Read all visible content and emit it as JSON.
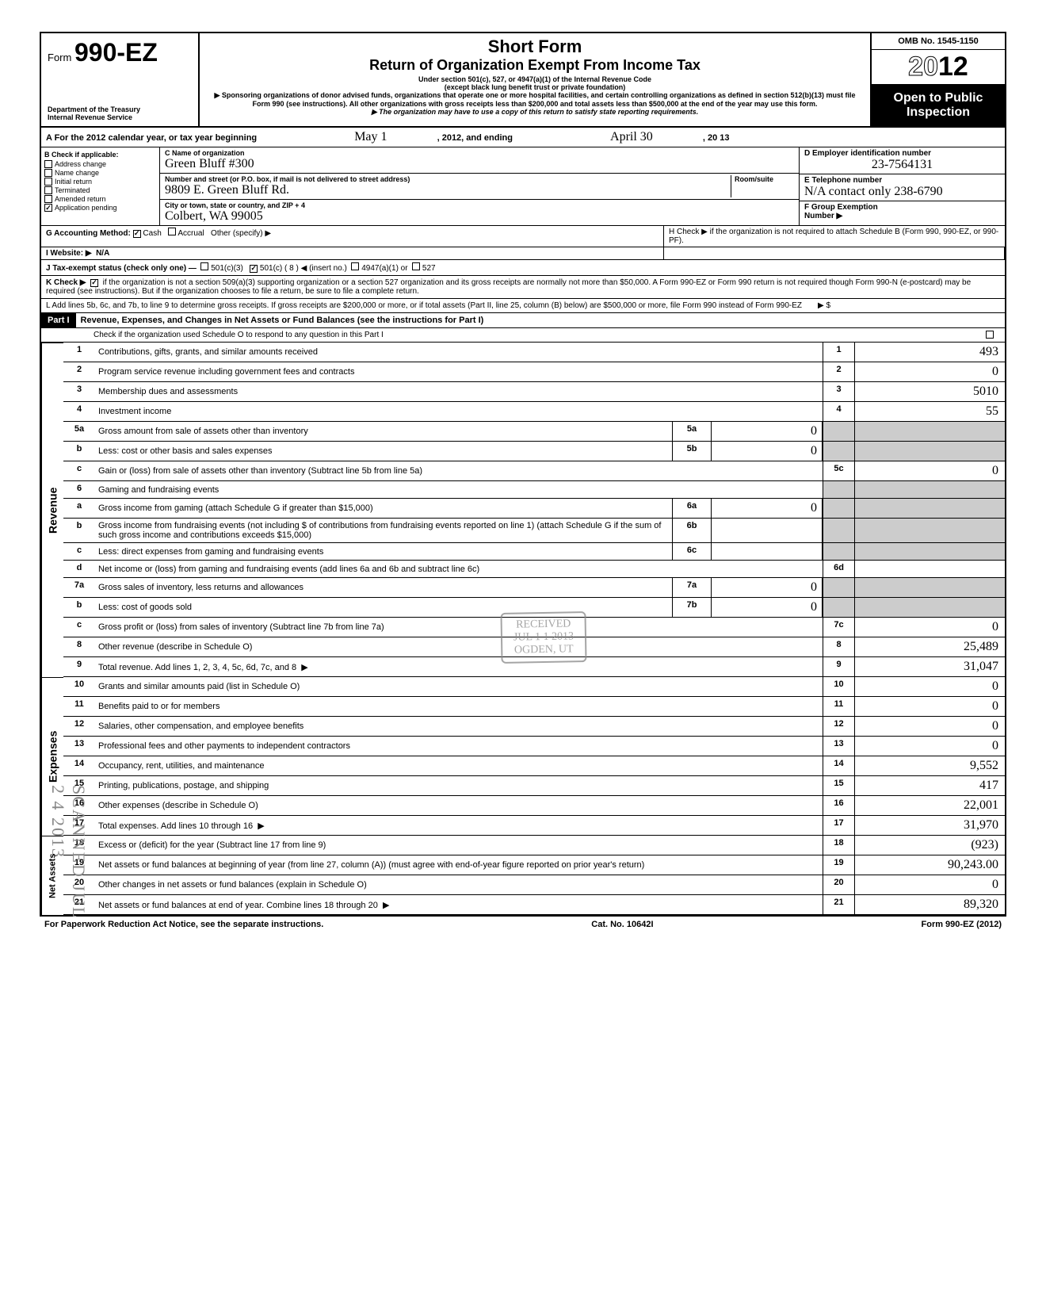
{
  "header": {
    "form_label": "Form",
    "form_number": "990-EZ",
    "dept1": "Department of the Treasury",
    "dept2": "Internal Revenue Service",
    "title1": "Short Form",
    "title2": "Return of Organization Exempt From Income Tax",
    "sub1": "Under section 501(c), 527, or 4947(a)(1) of the Internal Revenue Code",
    "sub2": "(except black lung benefit trust or private foundation)",
    "arrow1": "▶ Sponsoring organizations of donor advised funds, organizations that operate one or more hospital facilities, and certain controlling organizations as defined in section 512(b)(13) must file Form 990 (see instructions). All other organizations with gross receipts less than $200,000 and total assets less than $500,000 at the end of the year may use this form.",
    "arrow2": "▶ The organization may have to use a copy of this return to satisfy state reporting requirements.",
    "omb": "OMB No. 1545-1150",
    "year_prefix": "20",
    "year_bold": "12",
    "open": "Open to Public Inspection"
  },
  "rowA": {
    "text": "A  For the 2012 calendar year, or tax year beginning",
    "begin": "May 1",
    "mid": ", 2012, and ending",
    "end_m": "April 30",
    "end_y": ", 20   13"
  },
  "colB": {
    "header": "B  Check if applicable:",
    "items": [
      "Address change",
      "Name change",
      "Initial return",
      "Terminated",
      "Amended return",
      "Application pending"
    ],
    "checked": [
      false,
      false,
      false,
      false,
      false,
      true
    ]
  },
  "colC": {
    "name_lbl": "C  Name of organization",
    "name_val": "Green Bluff #300",
    "addr_lbl": "Number and street (or P.O. box, if mail is not delivered to street address)",
    "room_lbl": "Room/suite",
    "addr_val": "9809 E. Green Bluff Rd.",
    "city_lbl": "City or town, state or country, and ZIP + 4",
    "city_val": "Colbert, WA   99005"
  },
  "colD": {
    "ein_lbl": "D  Employer identification number",
    "ein_val": "23-7564131",
    "tel_lbl": "E  Telephone number",
    "tel_val": "N/A  contact only 238-6790",
    "grp_lbl": "F  Group Exemption",
    "grp_lbl2": "Number  ▶"
  },
  "rowG": {
    "g": "G  Accounting Method:",
    "cash": "Cash",
    "accrual": "Accrual",
    "other": "Other (specify) ▶",
    "cash_checked": true,
    "h": "H  Check ▶        if the organization is not required to attach Schedule B (Form 990, 990-EZ, or 990-PF)."
  },
  "rowI": {
    "i": "I   Website: ▶",
    "val": "N/A"
  },
  "rowJ": {
    "j": "J  Tax-exempt status (check only one) —",
    "a": "501(c)(3)",
    "b": "501(c) (  8  ) ◀ (insert no.)",
    "c": "4947(a)(1) or",
    "d": "527",
    "b_checked": true
  },
  "rowK": {
    "k": "K  Check ▶",
    "checked": true,
    "text": "if the organization is not a section 509(a)(3) supporting organization or a section 527 organization and its gross receipts are normally not more than $50,000. A Form 990-EZ or Form 990 return is not required though Form 990-N (e-postcard) may be required (see instructions). But if the organization chooses to file a return, be sure to file a complete return."
  },
  "rowL": {
    "text": "L  Add lines 5b, 6c, and 7b, to line 9 to determine gross receipts. If gross receipts are $200,000 or more, or if total assets (Part II, line 25, column (B) below) are $500,000 or more, file Form 990 instead of Form 990-EZ",
    "arrow": "▶  $"
  },
  "part1": {
    "label": "Part I",
    "title": "Revenue, Expenses, and Changes in Net Assets or Fund Balances (see the instructions for Part I)",
    "check": "Check if the organization used Schedule O to respond to any question in this Part I"
  },
  "revenue_label": "Revenue",
  "expenses_label": "Expenses",
  "netassets_label": "Net Assets",
  "lines": [
    {
      "n": "1",
      "d": "Contributions, gifts, grants, and similar amounts received",
      "col": "1",
      "v": "493"
    },
    {
      "n": "2",
      "d": "Program service revenue including government fees and contracts",
      "col": "2",
      "v": "0"
    },
    {
      "n": "3",
      "d": "Membership dues and assessments",
      "col": "3",
      "v": "5010"
    },
    {
      "n": "4",
      "d": "Investment income",
      "col": "4",
      "v": "55"
    },
    {
      "n": "5a",
      "d": "Gross amount from sale of assets other than inventory",
      "in": "5a",
      "iv": "0"
    },
    {
      "n": "b",
      "d": "Less: cost or other basis and sales expenses",
      "in": "5b",
      "iv": "0"
    },
    {
      "n": "c",
      "d": "Gain or (loss) from sale of assets other than inventory (Subtract line 5b from line 5a)",
      "col": "5c",
      "v": "0"
    },
    {
      "n": "6",
      "d": "Gaming and fundraising events"
    },
    {
      "n": "a",
      "d": "Gross income from gaming (attach Schedule G if greater than $15,000)",
      "in": "6a",
      "iv": "0"
    },
    {
      "n": "b",
      "d": "Gross income from fundraising events (not including  $                     of contributions from fundraising events reported on line 1) (attach Schedule G if the sum of such gross income and contributions exceeds $15,000)",
      "in": "6b",
      "iv": ""
    },
    {
      "n": "c",
      "d": "Less: direct expenses from gaming and fundraising events",
      "in": "6c",
      "iv": ""
    },
    {
      "n": "d",
      "d": "Net income or (loss) from gaming and fundraising events (add lines 6a and 6b and subtract line 6c)",
      "col": "6d",
      "v": ""
    },
    {
      "n": "7a",
      "d": "Gross sales of inventory, less returns and allowances",
      "in": "7a",
      "iv": "0"
    },
    {
      "n": "b",
      "d": "Less: cost of goods sold",
      "in": "7b",
      "iv": "0"
    },
    {
      "n": "c",
      "d": "Gross profit or (loss) from sales of inventory (Subtract line 7b from line 7a)",
      "col": "7c",
      "v": "0"
    },
    {
      "n": "8",
      "d": "Other revenue (describe in Schedule O)",
      "col": "8",
      "v": "25,489"
    },
    {
      "n": "9",
      "d": "Total revenue. Add lines 1, 2, 3, 4, 5c, 6d, 7c, and 8",
      "col": "9",
      "v": "31,047",
      "arrow": true
    }
  ],
  "exp_lines": [
    {
      "n": "10",
      "d": "Grants and similar amounts paid (list in Schedule O)",
      "col": "10",
      "v": "0"
    },
    {
      "n": "11",
      "d": "Benefits paid to or for members",
      "col": "11",
      "v": "0"
    },
    {
      "n": "12",
      "d": "Salaries, other compensation, and employee benefits",
      "col": "12",
      "v": "0"
    },
    {
      "n": "13",
      "d": "Professional fees and other payments to independent contractors",
      "col": "13",
      "v": "0"
    },
    {
      "n": "14",
      "d": "Occupancy, rent, utilities, and maintenance",
      "col": "14",
      "v": "9,552"
    },
    {
      "n": "15",
      "d": "Printing, publications, postage, and shipping",
      "col": "15",
      "v": "417"
    },
    {
      "n": "16",
      "d": "Other expenses (describe in Schedule O)",
      "col": "16",
      "v": "22,001"
    },
    {
      "n": "17",
      "d": "Total expenses. Add lines 10 through 16",
      "col": "17",
      "v": "31,970",
      "arrow": true
    }
  ],
  "na_lines": [
    {
      "n": "18",
      "d": "Excess or (deficit) for the year (Subtract line 17 from line 9)",
      "col": "18",
      "v": "(923)"
    },
    {
      "n": "19",
      "d": "Net assets or fund balances at beginning of year (from line 27, column (A)) (must agree with end-of-year figure reported on prior year's return)",
      "col": "19",
      "v": "90,243.00"
    },
    {
      "n": "20",
      "d": "Other changes in net assets or fund balances (explain in Schedule O)",
      "col": "20",
      "v": "0"
    },
    {
      "n": "21",
      "d": "Net assets or fund balances at end of year. Combine lines 18 through 20",
      "col": "21",
      "v": "89,320",
      "arrow": true
    }
  ],
  "footer": {
    "left": "For Paperwork Reduction Act Notice, see the separate instructions.",
    "mid": "Cat. No. 10642I",
    "right": "Form 990-EZ (2012)"
  },
  "stamp": {
    "l1": "RECEIVED",
    "l2": "JUL 1 1 2013",
    "l3": "OGDEN, UT"
  },
  "scanned": "SCANNED JUL 2 4 2013"
}
